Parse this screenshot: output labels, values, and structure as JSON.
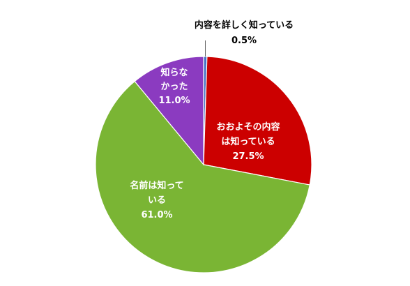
{
  "chart_data": {
    "type": "pie",
    "title": "",
    "start_angle_deg": 0,
    "direction": "clockwise",
    "legend": "none",
    "slices": [
      {
        "label_lines": [
          "内容を詳しく知っている"
        ],
        "value": 0.5,
        "percent_text": "0.5%",
        "color": "#4472C4",
        "label_color": "#000000",
        "label_placement": "outside"
      },
      {
        "label_lines": [
          "おおよその内容",
          "は知っている"
        ],
        "value": 27.5,
        "percent_text": "27.5%",
        "color": "#CC0000",
        "label_color": "#ffffff",
        "label_placement": "inside"
      },
      {
        "label_lines": [
          "名前は知って",
          "いる"
        ],
        "value": 61.0,
        "percent_text": "61.0%",
        "color": "#7AB534",
        "label_color": "#ffffff",
        "label_placement": "inside"
      },
      {
        "label_lines": [
          "知らな",
          "かった"
        ],
        "value": 11.0,
        "percent_text": "11.0%",
        "color": "#8B3BC0",
        "label_color": "#ffffff",
        "label_placement": "inside"
      }
    ]
  }
}
